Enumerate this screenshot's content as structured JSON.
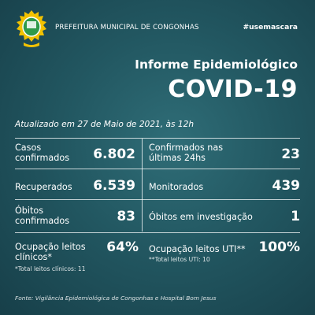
{
  "header": {
    "city": "PREFEITURA MUNICIPAL DE CONGONHAS",
    "hashtag": "#usemascara",
    "crest_icon": "city-crest-icon"
  },
  "title": {
    "line1": "Informe Epidemiológico",
    "line2": "COVID-19"
  },
  "updated": "Atualizado em 27 de Maio de 2021, às 12h",
  "stats": {
    "casos": {
      "label1": "Casos",
      "label2": "confirmados",
      "value": "6.802"
    },
    "ultimas": {
      "label1": "Confirmados nas",
      "label2": "últimas 24hs",
      "value": "23"
    },
    "recuperados": {
      "label": "Recuperados",
      "value": "6.539"
    },
    "monitorados": {
      "label": "Monitorados",
      "value": "439"
    },
    "obitos": {
      "label1": "Óbitos",
      "label2": "confirmados",
      "value": "83"
    },
    "investigacao": {
      "label": "Óbitos em investigação",
      "value": "1"
    },
    "leitos_clinicos": {
      "label1": "Ocupação leitos",
      "label2": "clínicos*",
      "value": "64%",
      "note": "*Total leitos clínicos: 11"
    },
    "leitos_uti": {
      "label": "Ocupação leitos UTI**",
      "value": "100%",
      "note": "**Total leitos UTI: 10"
    }
  },
  "footer": "Fonte: Vigilância Epidemiológica de Congonhas e Hospital Bom Jesus",
  "colors": {
    "background": "#225761",
    "crest_yellow": "#f2c200",
    "crest_green": "#2f9a4a"
  }
}
